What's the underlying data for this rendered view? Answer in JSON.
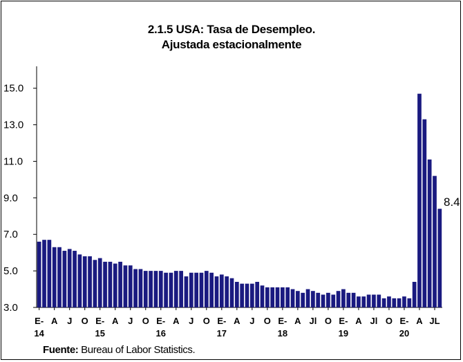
{
  "chart_data": {
    "type": "bar",
    "title": "2.1.5 USA:  Tasa de Desempleo.",
    "subtitle": "Ajustada estacionalmente",
    "ylim": [
      3.0,
      16.2
    ],
    "yticks": [
      "3.0",
      "5.0",
      "7.0",
      "9.0",
      "11.0",
      "13.0",
      "15.0"
    ],
    "bar_color": "#1a1a80",
    "grid": false,
    "x_tick_labels": [
      "E-",
      "A",
      "J",
      "O",
      "E-",
      "A",
      "J",
      "O",
      "E-",
      "A",
      "J",
      "O",
      "E-",
      "A",
      "J",
      "O",
      "E-",
      "A",
      "Jl",
      "O",
      "E-",
      "A",
      "Jl",
      "O",
      "E-",
      "A",
      "JL"
    ],
    "x_year_labels": [
      "14",
      "15",
      "16",
      "17",
      "18",
      "19",
      "20"
    ],
    "values": [
      6.6,
      6.7,
      6.7,
      6.3,
      6.3,
      6.1,
      6.2,
      6.1,
      5.9,
      5.8,
      5.8,
      5.6,
      5.7,
      5.5,
      5.5,
      5.4,
      5.5,
      5.3,
      5.3,
      5.1,
      5.1,
      5.0,
      5.0,
      5.0,
      5.0,
      4.9,
      4.9,
      5.0,
      5.0,
      4.7,
      4.9,
      4.9,
      4.9,
      5.0,
      4.9,
      4.7,
      4.8,
      4.7,
      4.6,
      4.4,
      4.3,
      4.3,
      4.3,
      4.4,
      4.2,
      4.1,
      4.1,
      4.1,
      4.1,
      4.1,
      4.0,
      3.9,
      3.8,
      4.0,
      3.9,
      3.8,
      3.7,
      3.8,
      3.7,
      3.9,
      4.0,
      3.8,
      3.8,
      3.6,
      3.6,
      3.7,
      3.7,
      3.7,
      3.5,
      3.6,
      3.5,
      3.5,
      3.6,
      3.5,
      4.4,
      14.7,
      13.3,
      11.1,
      10.2,
      8.4
    ],
    "data_label": "8.4"
  },
  "footer": {
    "source_label": "Fuente:",
    "source_text": " Bureau of Labor Statistics."
  }
}
